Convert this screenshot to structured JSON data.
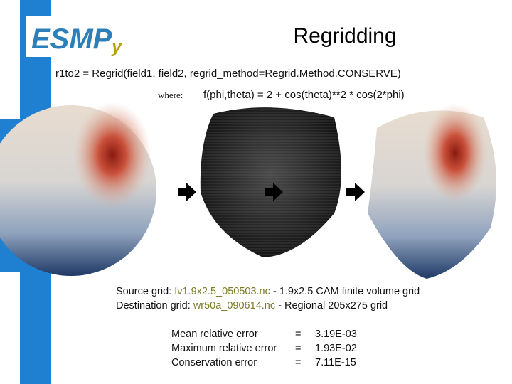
{
  "logo": {
    "main": "ESMP",
    "sub": "y"
  },
  "title": "Regridding",
  "code": "r1to2 = Regrid(field1, field2, regrid_method=Regrid.Method.CONSERVE)",
  "where": {
    "label": "where:",
    "formula": "f(phi,theta) = 2 + cos(theta)**2 * cos(2*phi)"
  },
  "grids": [
    {
      "label": "Source grid:",
      "file": "fv1.9x2.5_050503.nc",
      "sep": "-",
      "desc": "1.9x2.5 CAM finite volume grid"
    },
    {
      "label": "Destination grid:",
      "file": "wr50a_090614.nc",
      "sep": "-",
      "desc": "Regional 205x275 grid"
    }
  ],
  "errors": [
    [
      "Mean relative error",
      "=",
      "3.19E-03"
    ],
    [
      "Maximum relative error",
      "=",
      "1.93E-02"
    ],
    [
      "Conservation error",
      "=",
      "7.11E-15"
    ]
  ]
}
